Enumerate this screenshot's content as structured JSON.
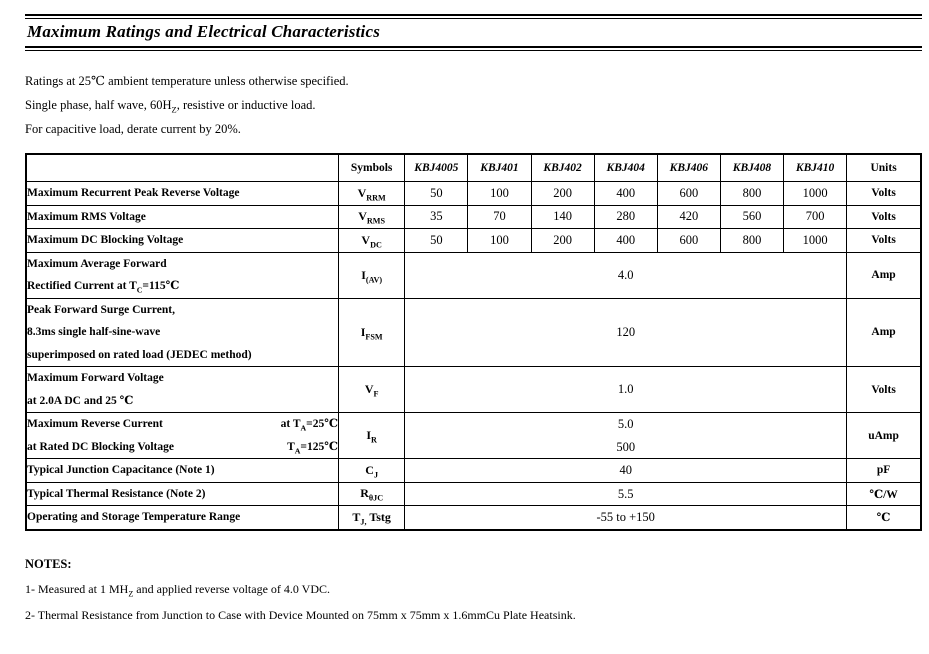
{
  "title": "Maximum Ratings and Electrical Characteristics",
  "intro": [
    {
      "parts": [
        {
          "t": "Ratings at 25℃ ambient temperature unless otherwise specified."
        }
      ]
    },
    {
      "parts": [
        {
          "t": "Single phase, half wave, 60H"
        },
        {
          "t": "Z",
          "sub": true
        },
        {
          "t": ", resistive or inductive load."
        }
      ]
    },
    {
      "parts": [
        {
          "t": "For capacitive load, derate current by 20%."
        }
      ]
    }
  ],
  "table": {
    "col_widths": [
      "34.9%",
      "7.4%",
      "7.05%",
      "7.05%",
      "7.05%",
      "7.05%",
      "7.05%",
      "7.05%",
      "7.05%",
      "8.3%"
    ],
    "columns": [
      "Symbols",
      "KBJ4005",
      "KBJ401",
      "KBJ402",
      "KBJ404",
      "KBJ406",
      "KBJ408",
      "KBJ410",
      "Units"
    ],
    "rows": [
      {
        "desc": [
          {
            "parts": [
              {
                "t": "Maximum Recurrent Peak Reverse Voltage"
              }
            ]
          }
        ],
        "symbol": [
          {
            "t": "V"
          },
          {
            "t": "RRM",
            "sub": true
          }
        ],
        "values": [
          "50",
          "100",
          "200",
          "400",
          "600",
          "800",
          "1000"
        ],
        "units": "Volts"
      },
      {
        "desc": [
          {
            "parts": [
              {
                "t": "Maximum RMS Voltage"
              }
            ]
          }
        ],
        "symbol": [
          {
            "t": "V"
          },
          {
            "t": "RMS",
            "sub": true
          }
        ],
        "values": [
          "35",
          "70",
          "140",
          "280",
          "420",
          "560",
          "700"
        ],
        "units": "Volts"
      },
      {
        "desc": [
          {
            "parts": [
              {
                "t": "Maximum DC Blocking Voltage"
              }
            ]
          }
        ],
        "symbol": [
          {
            "t": "V"
          },
          {
            "t": "DC",
            "sub": true
          }
        ],
        "values": [
          "50",
          "100",
          "200",
          "400",
          "600",
          "800",
          "1000"
        ],
        "units": "Volts"
      },
      {
        "desc": [
          {
            "parts": [
              {
                "t": "Maximum Average Forward"
              }
            ]
          },
          {
            "parts": [
              {
                "t": "Rectified Current at T"
              },
              {
                "t": "C",
                "sub": true
              },
              {
                "t": "=115℃"
              }
            ]
          }
        ],
        "symbol": [
          {
            "t": "I"
          },
          {
            "t": "(AV)",
            "sub": true
          }
        ],
        "span_lines": [
          "4.0"
        ],
        "units": "Amp"
      },
      {
        "desc": [
          {
            "parts": [
              {
                "t": "Peak Forward Surge Current,"
              }
            ]
          },
          {
            "parts": [
              {
                "t": "8.3ms single half-sine-wave"
              }
            ]
          },
          {
            "parts": [
              {
                "t": "superimposed on rated load (JEDEC method)"
              }
            ]
          }
        ],
        "symbol": [
          {
            "t": "I"
          },
          {
            "t": "FSM",
            "sub": true
          }
        ],
        "span_lines": [
          "120"
        ],
        "units": "Amp"
      },
      {
        "desc": [
          {
            "parts": [
              {
                "t": "Maximum Forward Voltage"
              }
            ]
          },
          {
            "parts": [
              {
                "t": "at 2.0A DC and 25 ℃"
              }
            ]
          }
        ],
        "symbol": [
          {
            "t": "V"
          },
          {
            "t": "F",
            "sub": true
          }
        ],
        "span_lines": [
          "1.0"
        ],
        "units": "Volts"
      },
      {
        "desc": [
          {
            "parts": [
              {
                "t": "Maximum Reverse Current"
              }
            ],
            "right": [
              {
                "t": "at T"
              },
              {
                "t": "A",
                "sub": true
              },
              {
                "t": "=25℃"
              }
            ]
          },
          {
            "parts": [
              {
                "t": "at Rated DC Blocking Voltage"
              }
            ],
            "right": [
              {
                "t": "T"
              },
              {
                "t": "A",
                "sub": true
              },
              {
                "t": "=125℃"
              }
            ]
          }
        ],
        "symbol": [
          {
            "t": "I"
          },
          {
            "t": "R",
            "sub": true
          }
        ],
        "span_lines": [
          "5.0",
          "500"
        ],
        "units": "uAmp"
      },
      {
        "desc": [
          {
            "parts": [
              {
                "t": "Typical Junction Capacitance (Note 1)"
              }
            ]
          }
        ],
        "symbol": [
          {
            "t": "C"
          },
          {
            "t": "J",
            "sub": true
          }
        ],
        "span_lines": [
          "40"
        ],
        "units": "pF"
      },
      {
        "desc": [
          {
            "parts": [
              {
                "t": "Typical Thermal Resistance (Note 2)"
              }
            ]
          }
        ],
        "symbol": [
          {
            "t": "R"
          },
          {
            "t": "θJC",
            "sub": true
          }
        ],
        "span_lines": [
          "5.5"
        ],
        "units": "℃/W"
      },
      {
        "desc": [
          {
            "parts": [
              {
                "t": "Operating and Storage Temperature Range"
              }
            ]
          }
        ],
        "symbol": [
          {
            "t": "T"
          },
          {
            "t": "J,",
            "sub": true
          },
          {
            "t": "  Tstg"
          }
        ],
        "span_lines": [
          "-55 to +150"
        ],
        "units": "℃"
      }
    ]
  },
  "notes": {
    "heading": "NOTES:",
    "items": [
      {
        "parts": [
          {
            "t": "1- Measured at 1 MH"
          },
          {
            "t": "Z",
            "sub": true
          },
          {
            "t": " and applied reverse voltage of 4.0 VDC."
          }
        ]
      },
      {
        "parts": [
          {
            "t": "2- Thermal Resistance from Junction to Case with Device Mounted on 75mm x 75mm x 1.6mmCu Plate Heatsink."
          }
        ]
      }
    ]
  }
}
